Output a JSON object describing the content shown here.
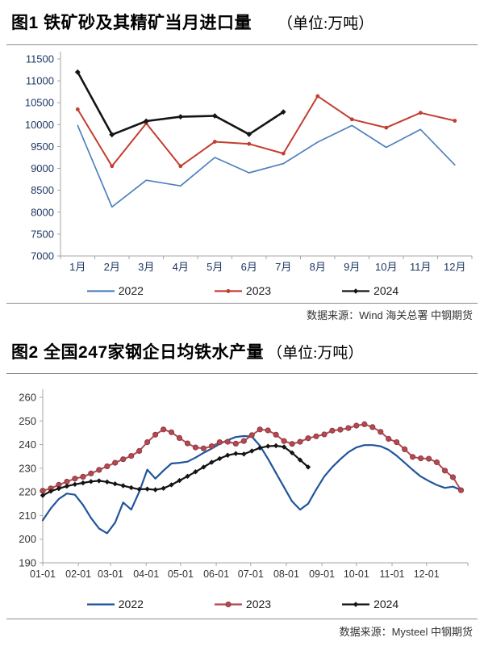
{
  "chart_data": [
    {
      "type": "line",
      "title": "图1 铁矿砂及其精矿当月进口量",
      "unit": "（单位:万吨）",
      "source": "数据来源：Wind 海关总署 中钢期货",
      "xtick_labels": [
        "1月",
        "2月",
        "3月",
        "4月",
        "5月",
        "6月",
        "7月",
        "8月",
        "9月",
        "10月",
        "11月",
        "12月"
      ],
      "ylim": [
        7000,
        11500
      ],
      "ytick_step": 500,
      "ytick_labels": [
        "7000",
        "7500",
        "8000",
        "8500",
        "9000",
        "9500",
        "10000",
        "10500",
        "11000",
        "11500"
      ],
      "grid": false,
      "legend_position": "bottom",
      "axis_color": "#a6a6a6",
      "label_color": "#1f3864",
      "series": [
        {
          "name": "2022",
          "color": "#4f81bd",
          "marker": "none",
          "line_width": 1.7,
          "values": [
            9980,
            8120,
            8730,
            8600,
            9250,
            8900,
            9110,
            9600,
            9980,
            9480,
            9890,
            9080
          ]
        },
        {
          "name": "2023",
          "color": "#c23e30",
          "marker": "dot",
          "line_width": 2.0,
          "values": [
            10350,
            9050,
            10030,
            9050,
            9610,
            9560,
            9340,
            10650,
            10120,
            9930,
            10270,
            10090
          ]
        },
        {
          "name": "2024",
          "color": "#141414",
          "marker": "diamond",
          "line_width": 2.6,
          "values": [
            11200,
            9770,
            10080,
            10180,
            10200,
            9780,
            10290
          ]
        }
      ]
    },
    {
      "type": "line",
      "title": "图2 全国247家钢企日均铁水产量",
      "unit": "（单位:万吨）",
      "source": "数据来源：Mysteel 中钢期货",
      "xtick_labels": [
        "01-01",
        "02-01",
        "03-01",
        "04-01",
        "05-01",
        "06-01",
        "07-01",
        "08-01",
        "09-01",
        "10-01",
        "11-01",
        "12-01"
      ],
      "x_sampling": "weekly",
      "ylim": [
        190,
        260
      ],
      "ytick_step": 10,
      "ytick_labels": [
        "190",
        "200",
        "210",
        "220",
        "230",
        "240",
        "250",
        "260"
      ],
      "grid": false,
      "legend_position": "bottom",
      "axis_color": "#a6a6a6",
      "label_color": "#333333",
      "series": [
        {
          "name": "2022",
          "color": "#20549b",
          "marker": "none",
          "line_width": 2.2,
          "values": [
            208,
            213,
            217,
            219.3,
            218.8,
            214.5,
            209,
            204.5,
            202.5,
            207,
            215.5,
            212.5,
            220,
            229.4,
            225.6,
            229,
            232,
            232.3,
            232.8,
            234.5,
            236.5,
            238.3,
            240.3,
            241.9,
            243.2,
            243.6,
            243.4,
            239.5,
            234,
            228,
            222,
            216,
            212.5,
            215,
            221,
            226.5,
            230.5,
            233.8,
            236.8,
            238.8,
            239.8,
            239.8,
            239.3,
            237.8,
            235.3,
            232.3,
            229.3,
            226.5,
            224.6,
            222.9,
            221.7,
            222.2,
            220.8
          ]
        },
        {
          "name": "2023",
          "color": "#b4494f",
          "marker": "dot",
          "marker_stroke": "#8e3a44",
          "line_width": 2.0,
          "values": [
            220.5,
            221.5,
            223,
            224.3,
            225.6,
            226.4,
            227.8,
            229.3,
            230.8,
            232.3,
            233.8,
            235.2,
            237.3,
            241,
            244.2,
            246.4,
            245.2,
            242.8,
            240.5,
            238.8,
            238.4,
            239.3,
            241,
            241.2,
            240.4,
            241.5,
            244,
            246.4,
            246,
            244.2,
            241.5,
            240.3,
            241.2,
            242.7,
            243.5,
            244.3,
            245.9,
            246.3,
            247,
            248,
            248.6,
            247.4,
            245.4,
            242.4,
            241,
            238,
            234.8,
            234.2,
            234,
            232.5,
            229,
            226.2,
            220.7
          ]
        },
        {
          "name": "2024",
          "color": "#141414",
          "marker": "diamond",
          "line_width": 2.2,
          "values": [
            218.5,
            220.3,
            221.4,
            222.4,
            223.2,
            223.8,
            224.4,
            224.7,
            224.2,
            223.4,
            222.6,
            221.8,
            221.1,
            221.2,
            220.9,
            221.5,
            223,
            224.8,
            226.6,
            228.5,
            230.5,
            232.5,
            234.1,
            235.5,
            236.2,
            236,
            237.3,
            238.6,
            239.3,
            239.5,
            239,
            236.5,
            233.5,
            230.5
          ]
        }
      ]
    }
  ]
}
